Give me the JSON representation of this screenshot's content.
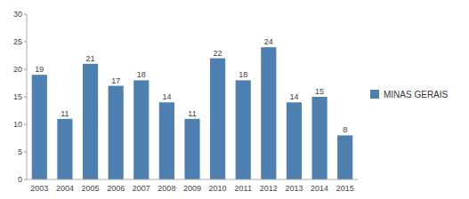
{
  "chart_data": {
    "type": "bar",
    "categories": [
      "2003",
      "2004",
      "2005",
      "2006",
      "2007",
      "2008",
      "2009",
      "2010",
      "2011",
      "2012",
      "2013",
      "2014",
      "2015"
    ],
    "series": [
      {
        "name": "MINAS GERAIS",
        "color": "#4d7fb0",
        "values": [
          19,
          11,
          21,
          17,
          18,
          14,
          11,
          22,
          18,
          24,
          14,
          15,
          8
        ]
      }
    ],
    "ylim": [
      0,
      30
    ],
    "yticks": [
      0,
      5,
      10,
      15,
      20,
      25,
      30
    ],
    "data_labels": true,
    "grid": false,
    "legend": "right"
  }
}
